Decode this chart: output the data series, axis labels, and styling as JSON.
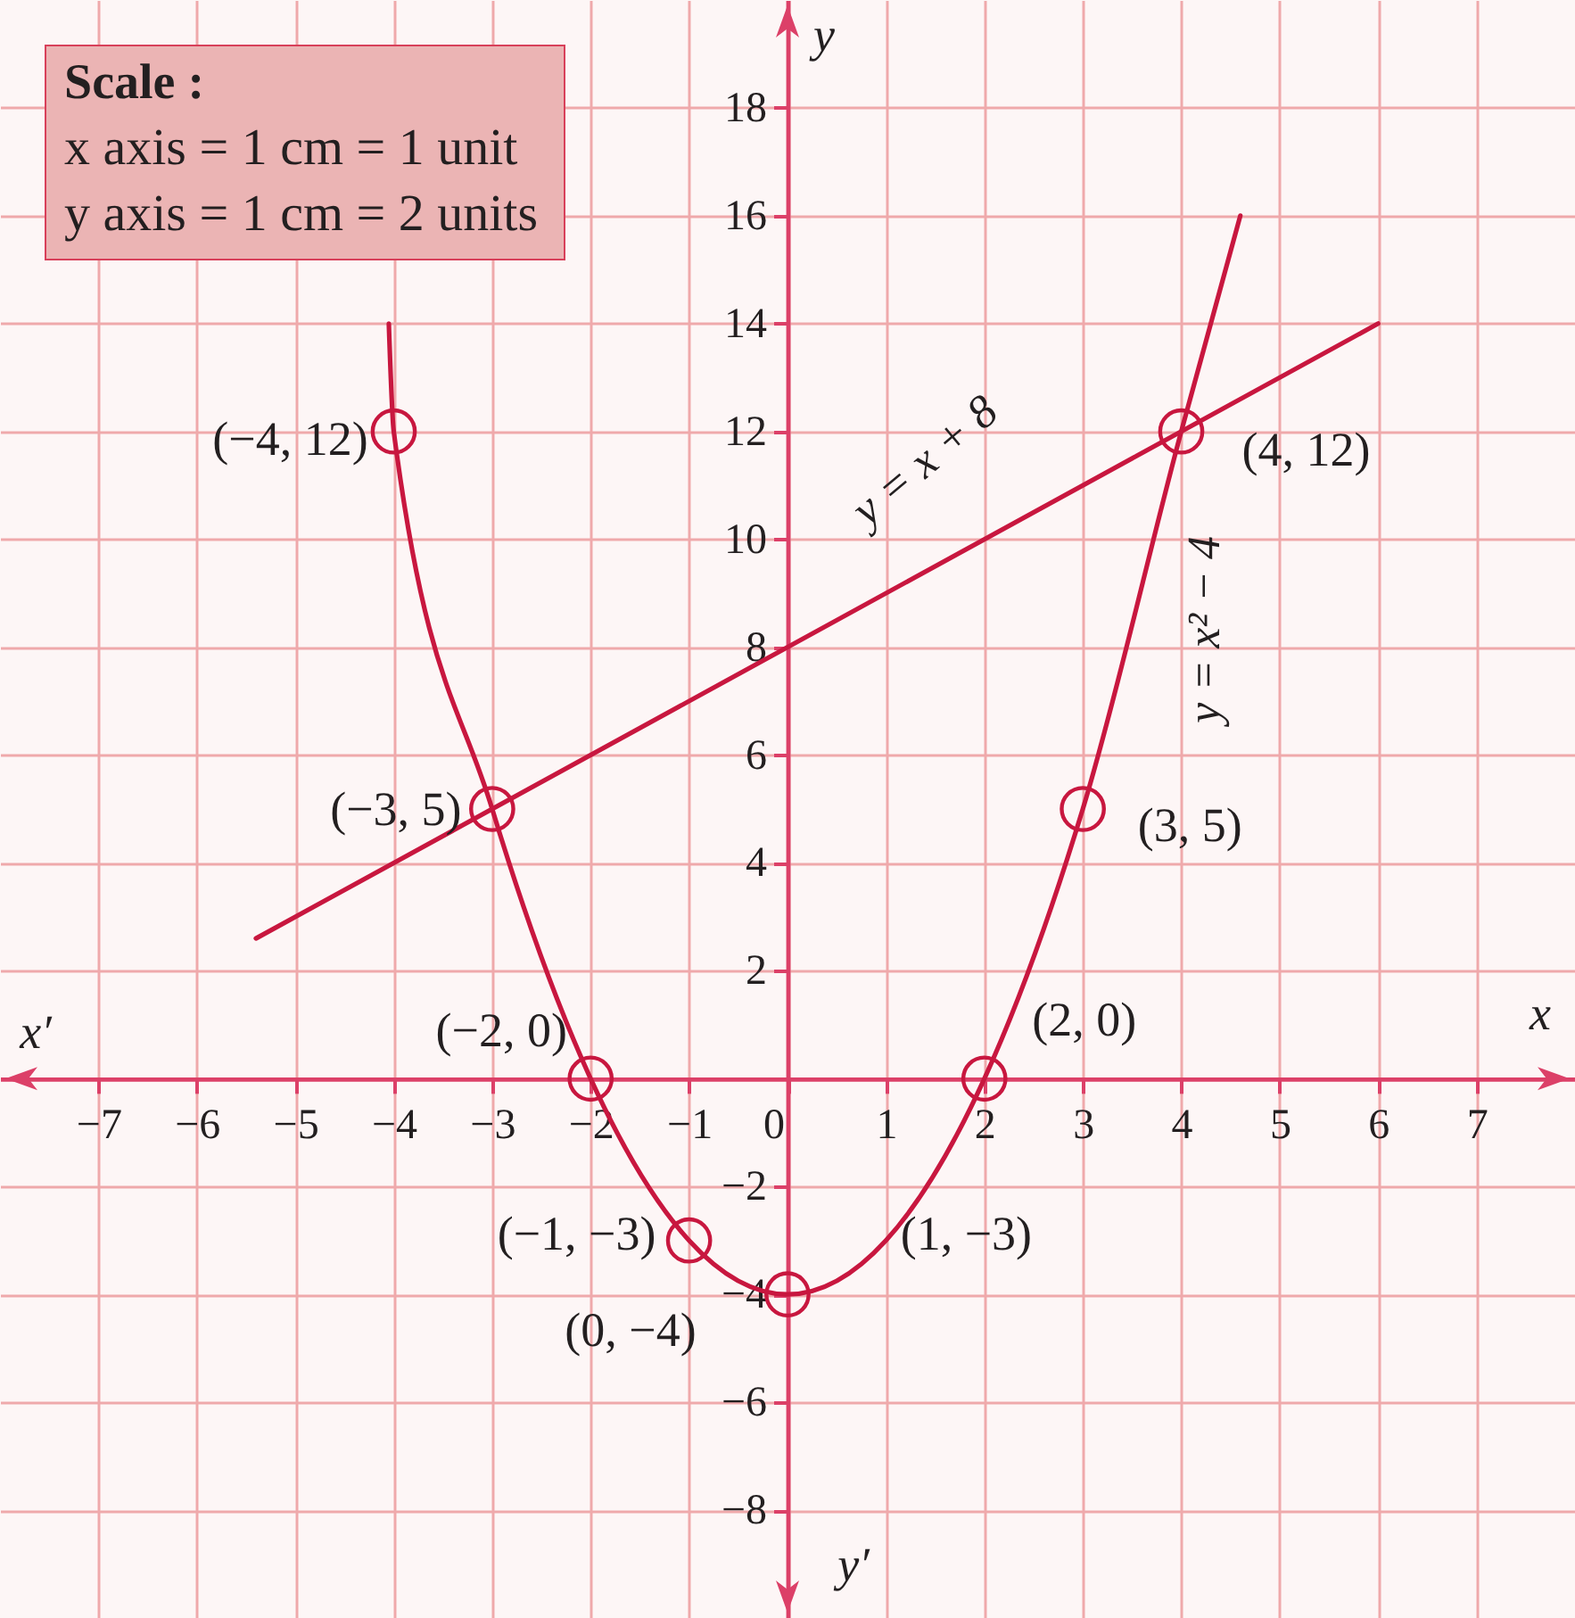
{
  "chart_data": {
    "type": "line",
    "xlabel": "x",
    "ylabel": "y",
    "xlim": [
      -8,
      8
    ],
    "ylim": [
      -10,
      20
    ],
    "xticks": [
      -7,
      -6,
      -5,
      -4,
      -3,
      -2,
      -1,
      0,
      1,
      2,
      3,
      4,
      5,
      6,
      7
    ],
    "yticks": [
      -8,
      -6,
      -4,
      -2,
      2,
      4,
      6,
      8,
      10,
      12,
      14,
      16,
      18
    ],
    "grid": true,
    "series": [
      {
        "name": "y = x² − 4",
        "color": "#c8173f",
        "x": [
          -4.05,
          -4,
          -3,
          -2,
          -1,
          0,
          1,
          2,
          3,
          4,
          4.6
        ],
        "values": [
          14,
          12,
          5,
          0,
          -3,
          -4,
          -3,
          0,
          5,
          12,
          16
        ]
      },
      {
        "name": "y = x + 8",
        "color": "#c8173f",
        "x": [
          -5.4,
          6
        ],
        "values": [
          2.6,
          14
        ]
      },
      {
        "type": "scatter",
        "color": "#c8173f",
        "marker": "circle",
        "x": [
          -4,
          -3,
          -2,
          -1,
          0,
          2,
          3,
          4
        ],
        "values": [
          12,
          5,
          0,
          -3,
          -4,
          0,
          5,
          12
        ]
      }
    ],
    "annotations": [
      "Scale :",
      "x axis = 1 cm = 1 unit",
      "y axis = 1 cm = 2 units",
      {
        "text": "(−4, 12)",
        "x": -4,
        "y": 12
      },
      {
        "text": "(−3, 5)",
        "x": -3,
        "y": 5
      },
      {
        "text": "(−2, 0)",
        "x": -2,
        "y": 0
      },
      {
        "text": "(−1, −3)",
        "x": -1,
        "y": -3
      },
      {
        "text": "(0, −4)",
        "x": 0,
        "y": -4
      },
      {
        "text": "(1, −3)",
        "x": 1,
        "y": -3
      },
      {
        "text": "(2, 0)",
        "x": 2,
        "y": 0
      },
      {
        "text": "(3, 5)",
        "x": 3,
        "y": 5
      },
      {
        "text": "(4, 12)",
        "x": 4,
        "y": 12
      },
      "x′",
      "y′"
    ]
  }
}
